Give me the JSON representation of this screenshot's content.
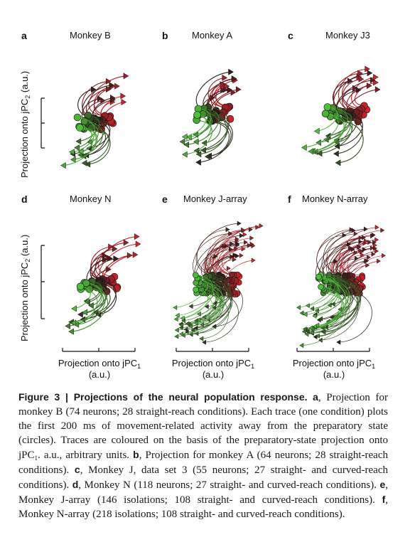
{
  "figure": {
    "panels": [
      {
        "letter": "a",
        "title": "Monkey B"
      },
      {
        "letter": "b",
        "title": "Monkey A"
      },
      {
        "letter": "c",
        "title": "Monkey J3"
      },
      {
        "letter": "d",
        "title": "Monkey N"
      },
      {
        "letter": "e",
        "title": "Monkey J-array"
      },
      {
        "letter": "f",
        "title": "Monkey N-array"
      }
    ],
    "ylabel": {
      "text": "Projection onto jPC",
      "sub": "2",
      "unit": " (a.u.)"
    },
    "xlabel": {
      "text": "Projection onto jPC",
      "sub": "1",
      "unit": "(a.u.)"
    },
    "colors": {
      "red": "#d7232a",
      "dark": "#2a1d1d",
      "green": "#4fbf3a"
    }
  },
  "caption": {
    "label": "Figure 3",
    "sep": " | ",
    "title": "Projections of the neural population response.",
    "parts": [
      {
        "bold": "a",
        "text": ", Projection for monkey B (74 neurons; 28 straight-reach conditions). Each trace (one condition) plots the first 200 ms of movement-related activity away from the preparatory state (circles). Traces are coloured on the basis of the preparatory-state projection onto jPC"
      },
      {
        "sub": "1"
      },
      {
        "text": ". a.u., arbitrary units. "
      },
      {
        "bold": "b"
      },
      {
        "text": ", Projection for monkey A (64 neurons; 28 straight-reach conditions). "
      },
      {
        "bold": "c"
      },
      {
        "text": ", Monkey J, data set 3 (55 neurons; 27 straight- and curved-reach conditions). "
      },
      {
        "bold": "d"
      },
      {
        "text": ", Monkey N (118 neurons; 27 straight- and curved-reach conditions). "
      },
      {
        "bold": "e"
      },
      {
        "text": ", Monkey J-array (146 isolations; 108 straight- and curved-reach conditions). "
      },
      {
        "bold": "f"
      },
      {
        "text": ", Monkey N-array (218 isolations; 108 straight- and curved-reach conditions)."
      }
    ]
  }
}
